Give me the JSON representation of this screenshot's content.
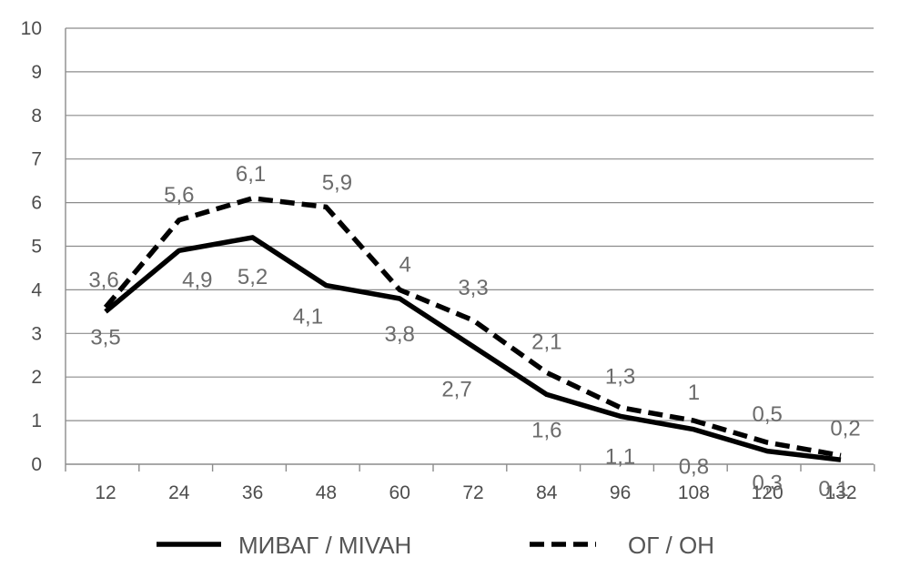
{
  "chart_data": {
    "type": "line",
    "x": [
      12,
      24,
      36,
      48,
      60,
      72,
      84,
      96,
      108,
      120,
      132
    ],
    "x_tick_labels": [
      "12",
      "24",
      "36",
      "48",
      "60",
      "72",
      "84",
      "96",
      "108",
      "120",
      "132"
    ],
    "ylim": [
      0,
      10
    ],
    "y_ticks": [
      0,
      1,
      2,
      3,
      4,
      5,
      6,
      7,
      8,
      9,
      10
    ],
    "y_tick_labels": [
      "0",
      "1",
      "2",
      "3",
      "4",
      "5",
      "6",
      "7",
      "8",
      "9",
      "10"
    ],
    "grid": true,
    "legend_position": "bottom",
    "series": [
      {
        "name": "МИВАГ / MIVAH",
        "style": "solid",
        "color": "#000000",
        "values": [
          3.5,
          4.9,
          5.2,
          4.1,
          3.8,
          2.7,
          1.6,
          1.1,
          0.8,
          0.3,
          0.1
        ],
        "labels": [
          "3,5",
          "4,9",
          "5,2",
          "4,1",
          "3,8",
          "2,7",
          "1,6",
          "1,1",
          "0,8",
          "0,3",
          "0,1"
        ]
      },
      {
        "name": "ОГ / ОН",
        "style": "dashed",
        "color": "#000000",
        "values": [
          3.6,
          5.6,
          6.1,
          5.9,
          4,
          3.3,
          2.1,
          1.3,
          1,
          0.5,
          0.2
        ],
        "labels": [
          "3,6",
          "5,6",
          "6,1",
          "5,9",
          "4",
          "3,3",
          "2,1",
          "1,3",
          "1",
          "0,5",
          "0,2"
        ]
      }
    ]
  }
}
